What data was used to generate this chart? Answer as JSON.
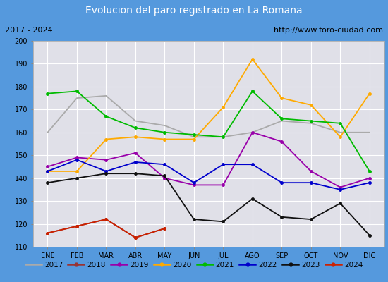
{
  "title": "Evolucion del paro registrado en La Romana",
  "subtitle_left": "2017 - 2024",
  "subtitle_right": "http://www.foro-ciudad.com",
  "months": [
    "ENE",
    "FEB",
    "MAR",
    "ABR",
    "MAY",
    "JUN",
    "JUL",
    "AGO",
    "SEP",
    "OCT",
    "NOV",
    "DIC"
  ],
  "series": {
    "2017": [
      160,
      175,
      176,
      165,
      163,
      158,
      158,
      160,
      165,
      164,
      160,
      160
    ],
    "2018": [
      116,
      119,
      122,
      114,
      118,
      null,
      null,
      null,
      null,
      null,
      null,
      null
    ],
    "2019": [
      145,
      149,
      148,
      151,
      140,
      137,
      137,
      160,
      156,
      143,
      136,
      140
    ],
    "2020": [
      143,
      143,
      157,
      158,
      157,
      157,
      171,
      192,
      175,
      172,
      158,
      177
    ],
    "2021": [
      177,
      178,
      167,
      162,
      160,
      159,
      158,
      178,
      166,
      165,
      164,
      143
    ],
    "2022": [
      143,
      148,
      143,
      147,
      146,
      138,
      146,
      146,
      138,
      138,
      135,
      138
    ],
    "2023": [
      138,
      140,
      142,
      142,
      141,
      122,
      121,
      131,
      123,
      122,
      129,
      115
    ],
    "2024": [
      116,
      119,
      122,
      114,
      118,
      null,
      null,
      null,
      null,
      null,
      null,
      null
    ]
  },
  "colors": {
    "2017": "#aaaaaa",
    "2018": "#993333",
    "2019": "#9900aa",
    "2020": "#ffaa00",
    "2021": "#00bb00",
    "2022": "#0000cc",
    "2023": "#111111",
    "2024": "#cc2200"
  },
  "ylim": [
    110,
    200
  ],
  "yticks": [
    110,
    120,
    130,
    140,
    150,
    160,
    170,
    180,
    190,
    200
  ],
  "title_bgcolor": "#5599dd",
  "title_color": "white",
  "plot_bgcolor": "#e0e0e8",
  "outer_color": "#5599dd",
  "grid_color": "white",
  "sub_bgcolor": "white"
}
